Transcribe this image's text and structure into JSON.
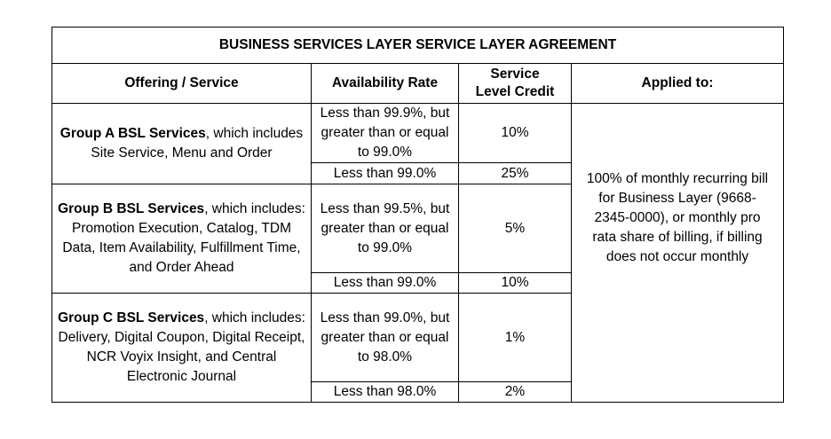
{
  "title": "BUSINESS SERVICES LAYER SERVICE LAYER AGREEMENT",
  "headers": {
    "offering": "Offering / Service",
    "availability": "Availability Rate",
    "credit_line1": "Service",
    "credit_line2": "Level Credit",
    "applied": "Applied to:"
  },
  "groups": [
    {
      "name": "Group A BSL Services",
      "description": ", which includes Site Service, Menu and Order",
      "tiers": [
        {
          "rate": "Less than 99.9%, but greater than or equal to 99.0%",
          "credit": "10%"
        },
        {
          "rate": "Less than 99.0%",
          "credit": "25%"
        }
      ]
    },
    {
      "name": "Group B BSL Services",
      "description": ", which includes: Promotion Execution, Catalog, TDM Data, Item Availability, Fulfillment Time, and Order Ahead",
      "tiers": [
        {
          "rate": "Less than 99.5%, but greater than or equal to 99.0%",
          "credit": "5%"
        },
        {
          "rate": "Less than 99.0%",
          "credit": "10%"
        }
      ]
    },
    {
      "name": "Group C BSL Services",
      "description": ", which includes: Delivery, Digital Coupon, Digital Receipt, NCR Voyix Insight, and Central Electronic Journal",
      "tiers": [
        {
          "rate": "Less than 99.0%, but greater than or equal to 98.0%",
          "credit": "1%"
        },
        {
          "rate": "Less than 98.0%",
          "credit": "2%"
        }
      ]
    }
  ],
  "applied_to": "100% of monthly recurring bill for Business Layer (9668-2345-0000), or monthly pro rata share of billing, if billing does not occur monthly"
}
